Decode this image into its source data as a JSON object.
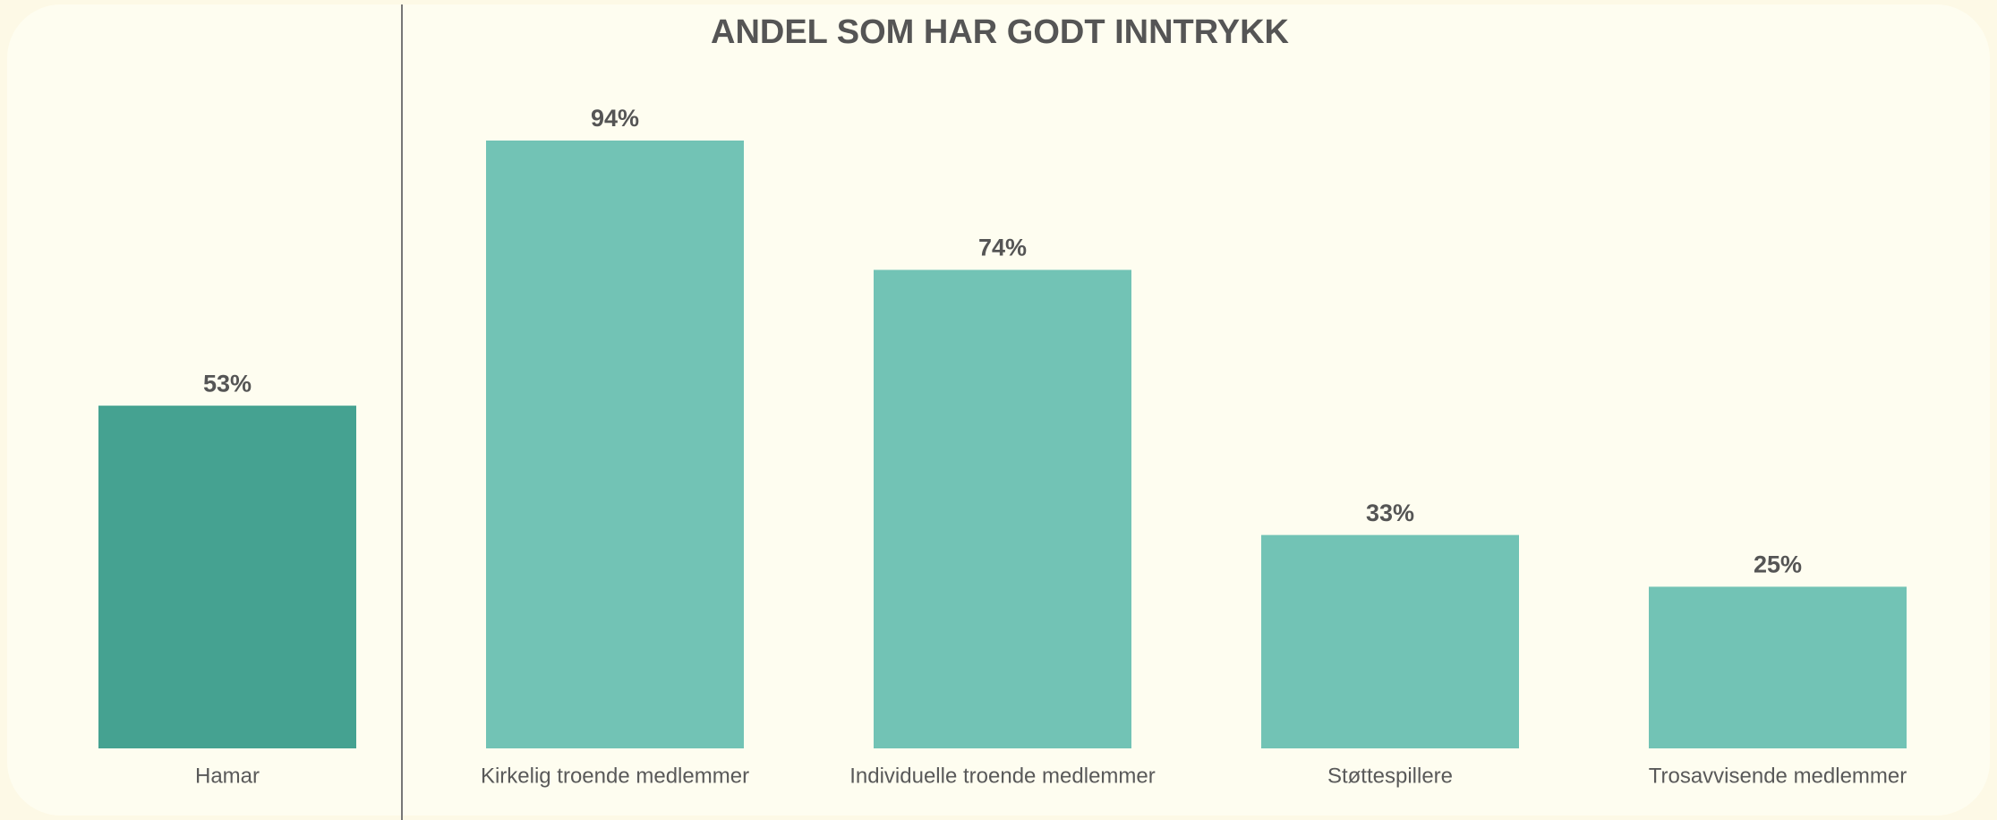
{
  "chart_data": {
    "type": "bar",
    "title": "ANDEL SOM HAR GODT INNTRYKK",
    "categories": [
      "Hamar",
      "Kirkelig troende medlemmer",
      "Individuelle troende medlemmer",
      "Støttespillere",
      "Trosavvisende medlemmer"
    ],
    "values": [
      53,
      94,
      74,
      33,
      25
    ],
    "value_labels": [
      "53%",
      "94%",
      "74%",
      "33%",
      "25%"
    ],
    "colors": [
      "#45a291",
      "#72c3b5",
      "#72c3b5",
      "#72c3b5",
      "#72c3b5"
    ]
  }
}
